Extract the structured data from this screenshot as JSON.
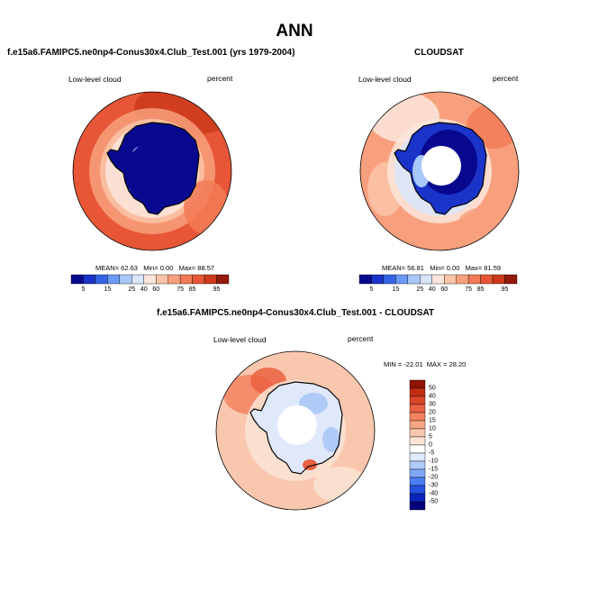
{
  "page_title": "ANN",
  "palette": [
    "#08088f",
    "#1a33c8",
    "#3564e8",
    "#6b9af5",
    "#a8c8fa",
    "#d8e6fb",
    "#fbe6dc",
    "#fbc4a8",
    "#f8a07d",
    "#f37b57",
    "#e75636",
    "#cc3a1b",
    "#941a0a"
  ],
  "diff_palette": [
    "#02027a",
    "#0a24b8",
    "#2450e0",
    "#4b7ef2",
    "#7ea8f6",
    "#b1cbf9",
    "#dfe9fb",
    "#ffffff",
    "#fbe4d6",
    "#f9c7ad",
    "#f6a585",
    "#f2835f",
    "#ea6141",
    "#db4424",
    "#c22d12",
    "#8f1404"
  ],
  "panels": [
    {
      "id": "model",
      "title": "f.e15a6.FAMIPC5.ne0np4-Conus30x4.Club_Test.001 (yrs 1979-2004)",
      "variable": "Low-level cloud",
      "units": "percent",
      "mean": "62.63",
      "min": "0.00",
      "max": "88.57",
      "colorbar_ticks": [
        "5",
        "15",
        "25",
        "40",
        "60",
        "75",
        "85",
        "95"
      ],
      "ocean_color": "#e75636",
      "ice_color": "#08088f"
    },
    {
      "id": "obs",
      "title": "CLOUDSAT",
      "variable": "Low-level cloud",
      "units": "percent",
      "mean": "56.81",
      "min": "0.00",
      "max": "81.59",
      "colorbar_ticks": [
        "5",
        "15",
        "25",
        "40",
        "60",
        "75",
        "85",
        "95"
      ],
      "ocean_color": "#f8a07d",
      "ice_color": "#1a33c8"
    }
  ],
  "diff_panel": {
    "title": "f.e15a6.FAMIPC5.ne0np4-Conus30x4.Club_Test.001 - CLOUDSAT",
    "variable": "Low-level cloud",
    "units": "percent",
    "min": "-22.01",
    "max": "28.20",
    "colorbar_labels": [
      "50",
      "40",
      "30",
      "20",
      "15",
      "10",
      "5",
      "0",
      "-5",
      "-10",
      "-15",
      "-20",
      "-30",
      "-40",
      "-50"
    ],
    "ocean_color": "#f9c7ad"
  },
  "labels": {
    "mean_label": "MEAN=",
    "min_label": "Min=",
    "max_label": "Max=",
    "diff_min_label": "MIN =",
    "diff_max_label": "MAX ="
  }
}
